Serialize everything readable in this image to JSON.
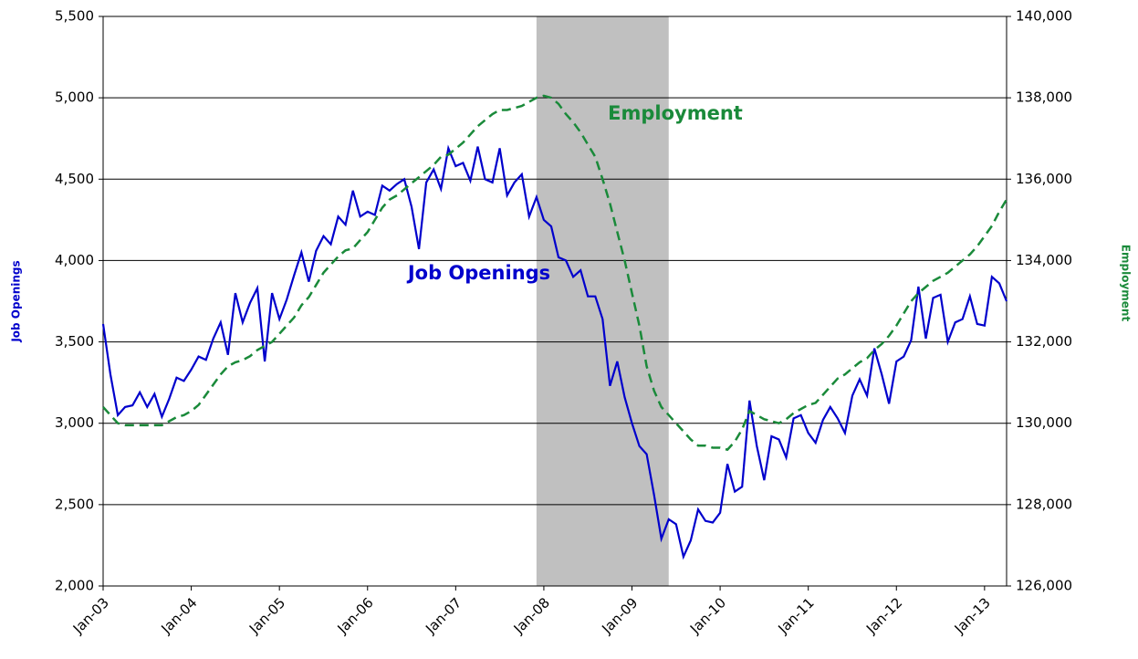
{
  "chart_data": {
    "type": "line",
    "categories": [
      "Jan-03",
      null,
      null,
      null,
      null,
      null,
      null,
      null,
      null,
      null,
      null,
      null,
      "Jan-04",
      null,
      null,
      null,
      null,
      null,
      null,
      null,
      null,
      null,
      null,
      null,
      "Jan-05",
      null,
      null,
      null,
      null,
      null,
      null,
      null,
      null,
      null,
      null,
      null,
      "Jan-06",
      null,
      null,
      null,
      null,
      null,
      null,
      null,
      null,
      null,
      null,
      null,
      "Jan-07",
      null,
      null,
      null,
      null,
      null,
      null,
      null,
      null,
      null,
      null,
      null,
      "Jan-08",
      null,
      null,
      null,
      null,
      null,
      null,
      null,
      null,
      null,
      null,
      null,
      "Jan-09",
      null,
      null,
      null,
      null,
      null,
      null,
      null,
      null,
      null,
      null,
      null,
      "Jan-10",
      null,
      null,
      null,
      null,
      null,
      null,
      null,
      null,
      null,
      null,
      null,
      "Jan-11",
      null,
      null,
      null,
      null,
      null,
      null,
      null,
      null,
      null,
      null,
      null,
      "Jan-12",
      null,
      null,
      null,
      null,
      null,
      null,
      null,
      null,
      null,
      null,
      null,
      "Jan-13",
      null,
      null,
      null
    ],
    "shaded_x": [
      59,
      77
    ],
    "series": [
      {
        "name": "Job Openings",
        "color": "#0000cc",
        "axis": "y",
        "dash": false,
        "values": [
          3610,
          3300,
          3050,
          3100,
          3110,
          3190,
          3100,
          3180,
          3040,
          3150,
          3280,
          3260,
          3330,
          3410,
          3390,
          3520,
          3620,
          3420,
          3800,
          3620,
          3740,
          3830,
          3380,
          3800,
          3640,
          3760,
          3910,
          4050,
          3870,
          4060,
          4150,
          4100,
          4270,
          4220,
          4430,
          4270,
          4300,
          4280,
          4460,
          4430,
          4470,
          4500,
          4330,
          4070,
          4480,
          4560,
          4440,
          4690,
          4580,
          4600,
          4490,
          4700,
          4500,
          4480,
          4690,
          4400,
          4480,
          4530,
          4270,
          4390,
          4250,
          4210,
          4020,
          4000,
          3900,
          3940,
          3780,
          3780,
          3640,
          3230,
          3380,
          3160,
          3000,
          2860,
          2810,
          2560,
          2290,
          2410,
          2380,
          2180,
          2280,
          2470,
          2400,
          2390,
          2450,
          2750,
          2580,
          2610,
          3140,
          2860,
          2650,
          2920,
          2900,
          2790,
          3030,
          3050,
          2940,
          2880,
          3020,
          3100,
          3030,
          2940,
          3170,
          3270,
          3170,
          3460,
          3300,
          3120,
          3380,
          3410,
          3510,
          3840,
          3520,
          3770,
          3790,
          3500,
          3620,
          3640,
          3780,
          3610,
          3600,
          3900,
          3860,
          3750
        ]
      },
      {
        "name": "Employment",
        "color": "#1a8a3a",
        "axis": "y2",
        "dash": true,
        "values": [
          130400,
          130200,
          130000,
          129950,
          129950,
          129950,
          129950,
          129950,
          129950,
          130050,
          130150,
          130200,
          130300,
          130450,
          130700,
          130950,
          131200,
          131400,
          131500,
          131550,
          131650,
          131800,
          131900,
          132000,
          132200,
          132400,
          132600,
          132900,
          133100,
          133400,
          133700,
          133900,
          134100,
          134250,
          134300,
          134500,
          134700,
          135000,
          135300,
          135500,
          135600,
          135750,
          135900,
          136050,
          136200,
          136350,
          136550,
          136600,
          136750,
          136900,
          137100,
          137300,
          137450,
          137600,
          137700,
          137700,
          137750,
          137800,
          137900,
          138000,
          138050,
          138000,
          137850,
          137600,
          137400,
          137150,
          136850,
          136550,
          136000,
          135400,
          134700,
          134000,
          133200,
          132400,
          131400,
          130800,
          130400,
          130200,
          130000,
          129800,
          129600,
          129450,
          129450,
          129400,
          129400,
          129350,
          129550,
          129850,
          130300,
          130200,
          130100,
          130050,
          130000,
          130100,
          130250,
          130350,
          130450,
          130500,
          130700,
          130900,
          131100,
          131200,
          131350,
          131500,
          131600,
          131800,
          131950,
          132150,
          132400,
          132700,
          133000,
          133200,
          133350,
          133500,
          133600,
          133700,
          133850,
          134000,
          134150,
          134350,
          134600,
          134850,
          135200,
          135500
        ]
      }
    ],
    "annotations": [
      "Employment",
      "Job Openings"
    ],
    "ylabel": "Job Openings",
    "y2label": "Employment",
    "ylim": [
      2000,
      5500
    ],
    "yticks": [
      {
        "value": 2000,
        "label": "2,000"
      },
      {
        "value": 2500,
        "label": "2,500"
      },
      {
        "value": 3000,
        "label": "3,000"
      },
      {
        "value": 3500,
        "label": "3,500"
      },
      {
        "value": 4000,
        "label": "4,000"
      },
      {
        "value": 4500,
        "label": "4,500"
      },
      {
        "value": 5000,
        "label": "5,000"
      },
      {
        "value": 5500,
        "label": "5,500"
      }
    ],
    "y2lim": [
      126000,
      140000
    ],
    "y2ticks": [
      {
        "value": 126000,
        "label": "126,000"
      },
      {
        "value": 128000,
        "label": "128,000"
      },
      {
        "value": 130000,
        "label": "130,000"
      },
      {
        "value": 132000,
        "label": "132,000"
      },
      {
        "value": 134000,
        "label": "134,000"
      },
      {
        "value": 136000,
        "label": "136,000"
      },
      {
        "value": 138000,
        "label": "138,000"
      },
      {
        "value": 140000,
        "label": "140,000"
      }
    ],
    "grid": true
  }
}
